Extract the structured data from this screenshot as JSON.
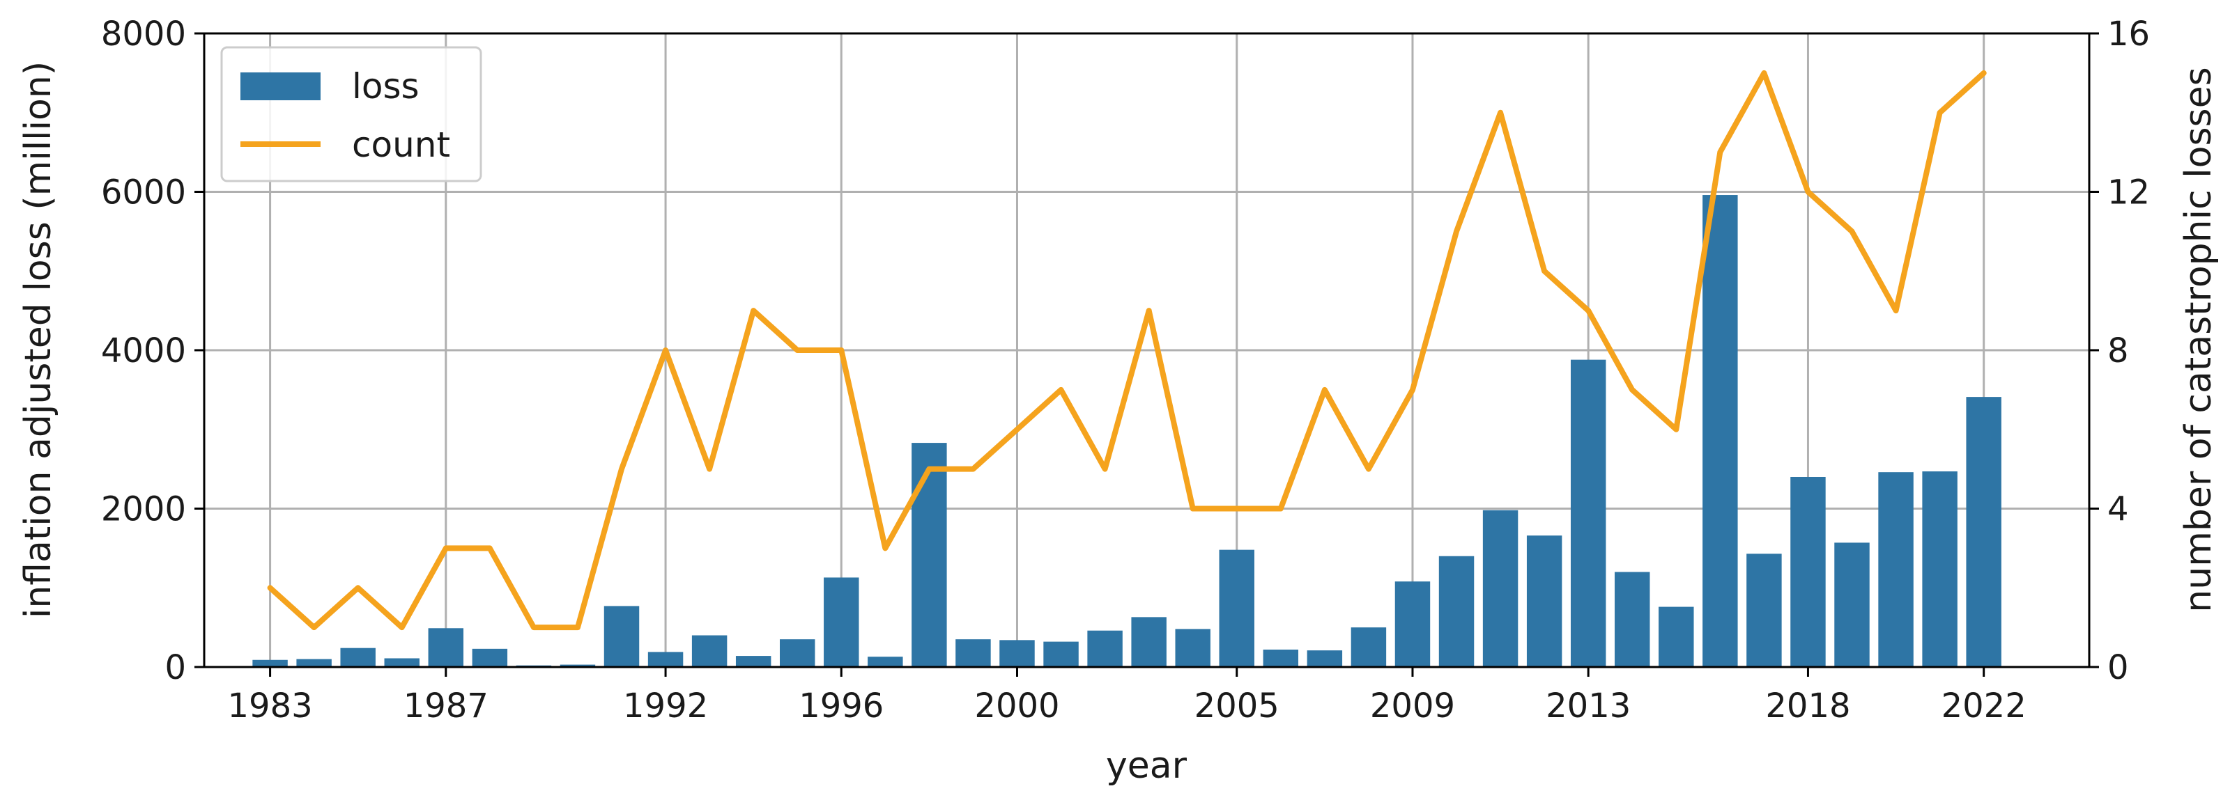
{
  "chart_data": {
    "type": "bar",
    "title": "",
    "xlabel": "year",
    "ylabel": "inflation adjusted loss (million)",
    "y2label": "number of catastrophic losses",
    "ylim": [
      0,
      8000
    ],
    "y2lim": [
      0,
      16
    ],
    "yticks": [
      "0",
      "2000",
      "4000",
      "6000",
      "8000"
    ],
    "y2ticks": [
      "0",
      "4",
      "8",
      "12",
      "16"
    ],
    "xticks": [
      "1983",
      "1987",
      "1992",
      "1996",
      "2000",
      "2005",
      "2009",
      "2013",
      "2018",
      "2022"
    ],
    "grid": true,
    "legend": {
      "position": "top-left"
    },
    "colors": {
      "loss": "#2e75a5",
      "count": "#f5a31d"
    },
    "x": [
      1983,
      1984,
      1985,
      1986,
      1987,
      1988,
      1989,
      1990,
      1991,
      1992,
      1993,
      1994,
      1995,
      1996,
      1997,
      1998,
      1999,
      2000,
      2001,
      2002,
      2003,
      2004,
      2005,
      2006,
      2007,
      2008,
      2009,
      2010,
      2011,
      2012,
      2013,
      2014,
      2015,
      2016,
      2017,
      2018,
      2019,
      2020,
      2021,
      2022
    ],
    "series": [
      {
        "name": "loss",
        "type": "bar",
        "axis": "left",
        "values": [
          90,
          100,
          240,
          110,
          490,
          230,
          20,
          30,
          770,
          190,
          400,
          140,
          350,
          1130,
          130,
          2830,
          350,
          340,
          320,
          460,
          630,
          480,
          1480,
          220,
          210,
          500,
          1080,
          1400,
          1980,
          1660,
          3880,
          1200,
          760,
          5960,
          1430,
          2400,
          1570,
          2460,
          2470,
          3410
        ]
      },
      {
        "name": "count",
        "type": "line",
        "axis": "right",
        "values": [
          2,
          1,
          2,
          1,
          3,
          3,
          1,
          1,
          5,
          8,
          5,
          9,
          8,
          8,
          3,
          5,
          5,
          6,
          7,
          5,
          9,
          4,
          4,
          4,
          7,
          5,
          7,
          11,
          14,
          10,
          9,
          7,
          6,
          13,
          15,
          12,
          11,
          9,
          14,
          15
        ]
      }
    ]
  }
}
